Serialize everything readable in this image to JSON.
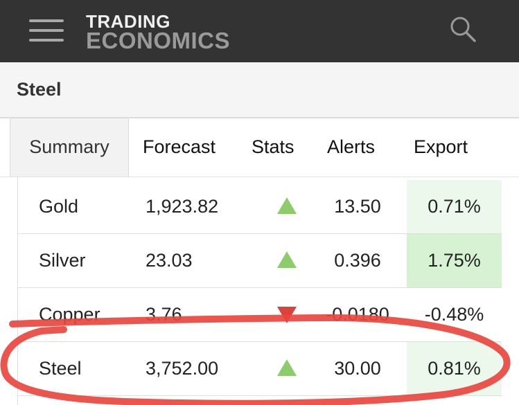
{
  "header": {
    "logo_line1": "TRADING",
    "logo_line2": "ECONOMICS",
    "menu_icon": "hamburger-menu-icon",
    "search_icon": "search-icon"
  },
  "page": {
    "title": "Steel"
  },
  "tabs": [
    {
      "label": "Summary",
      "active": true
    },
    {
      "label": "Forecast",
      "active": false
    },
    {
      "label": "Stats",
      "active": false
    },
    {
      "label": "Alerts",
      "active": false
    },
    {
      "label": "Export",
      "active": false
    }
  ],
  "table": {
    "rows": [
      {
        "name": "Gold",
        "price": "1,923.82",
        "direction": "up",
        "change": "13.50",
        "pct": "0.71%"
      },
      {
        "name": "Silver",
        "price": "23.03",
        "direction": "up",
        "change": "0.396",
        "pct": "1.75%"
      },
      {
        "name": "Copper",
        "price": "3.76",
        "direction": "down",
        "change": "-0.0180",
        "pct": "-0.48%"
      },
      {
        "name": "Steel",
        "price": "3,752.00",
        "direction": "up",
        "change": "30.00",
        "pct": "0.81%"
      }
    ]
  },
  "colors": {
    "header_bg": "#333333",
    "up_arrow": "#8ccc6a",
    "down_arrow": "#d9433b",
    "pct_bg_light": "#edf8ec",
    "pct_bg_strong": "#d7f2d3",
    "annotation_circle": "#e8463e"
  }
}
